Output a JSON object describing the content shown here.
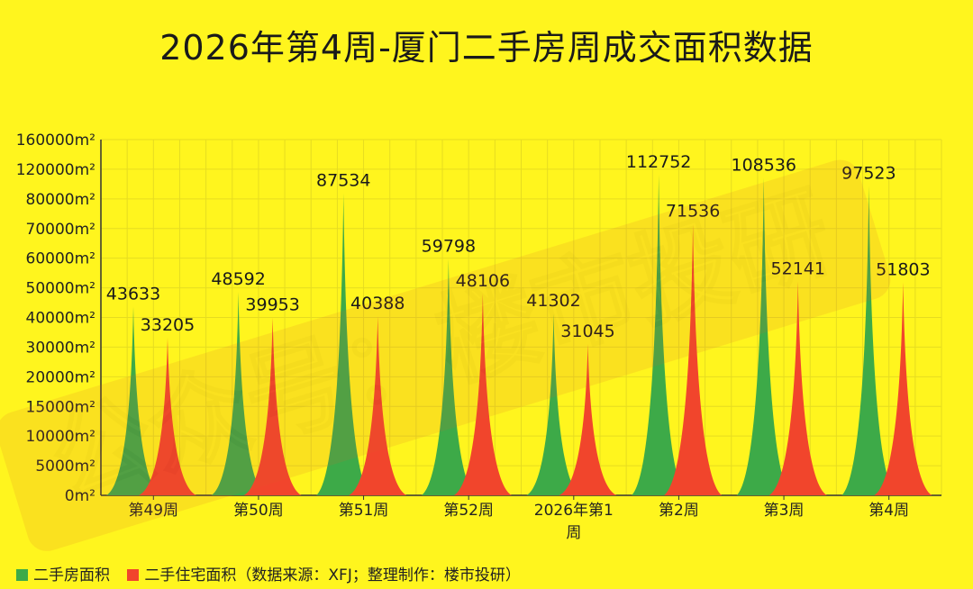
{
  "chart_data": {
    "type": "area",
    "title": "2026年第4周-厦门二手房周成交面积数据",
    "categories": [
      "第49周",
      "第50周",
      "第51周",
      "第52周",
      "2026年第1周",
      "第2周",
      "第3周",
      "第4周"
    ],
    "y_tick_labels": [
      "0m²",
      "5000m²",
      "10000m²",
      "15000m²",
      "20000m²",
      "30000m²",
      "40000m²",
      "50000m²",
      "60000m²",
      "70000m²",
      "80000m²",
      "120000m²",
      "160000m²"
    ],
    "y_tick_values": [
      0,
      5000,
      10000,
      15000,
      20000,
      30000,
      40000,
      50000,
      60000,
      70000,
      80000,
      120000,
      160000
    ],
    "series": [
      {
        "name": "二手房面积",
        "color": "#3DAA48",
        "values": [
          43633,
          48592,
          87534,
          59798,
          41302,
          112752,
          108536,
          97523
        ]
      },
      {
        "name": "二手住宅面积",
        "color": "#F1452C",
        "values": [
          33205,
          39953,
          40388,
          48106,
          31045,
          71536,
          52141,
          51803
        ]
      }
    ],
    "grid": true,
    "legend_position": "bottom-left"
  },
  "legend": {
    "note": "（数据来源：XFJ；整理制作：楼市投研）"
  },
  "watermark": "公众号：楼市投研"
}
